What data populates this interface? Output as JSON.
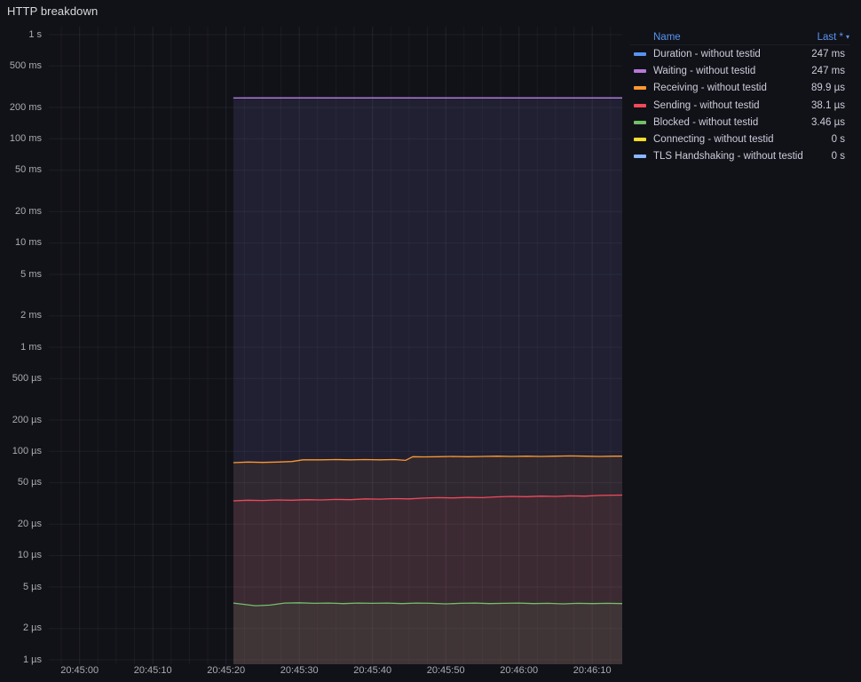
{
  "panel": {
    "title": "HTTP breakdown"
  },
  "legend": {
    "header_name": "Name",
    "header_last": "Last *",
    "sort_caret": "▾",
    "header_color": "#5794F2"
  },
  "colors": {
    "background": "#111217",
    "grid": "rgba(204,204,220,0.07)",
    "axis_text": "#A9ACB3",
    "legend_text": "#CCCCDC",
    "title_text": "#D8D9DA"
  },
  "chart_data": {
    "type": "line",
    "title": "HTTP breakdown",
    "legend_position": "right-top",
    "grid": true,
    "y_axis": {
      "scale": "log",
      "unit": "seconds",
      "top_value": 1.1934,
      "bottom_value": 9.06e-07,
      "ticks": [
        {
          "label": "1 s",
          "value": 1
        },
        {
          "label": "500 ms",
          "value": 0.5
        },
        {
          "label": "200 ms",
          "value": 0.2
        },
        {
          "label": "100 ms",
          "value": 0.1
        },
        {
          "label": "50 ms",
          "value": 0.05
        },
        {
          "label": "20 ms",
          "value": 0.02
        },
        {
          "label": "10 ms",
          "value": 0.01
        },
        {
          "label": "5 ms",
          "value": 0.005
        },
        {
          "label": "2 ms",
          "value": 0.002
        },
        {
          "label": "1 ms",
          "value": 0.001
        },
        {
          "label": "500 µs",
          "value": 0.0005
        },
        {
          "label": "200 µs",
          "value": 0.0002
        },
        {
          "label": "100 µs",
          "value": 0.0001
        },
        {
          "label": "50 µs",
          "value": 5e-05
        },
        {
          "label": "20 µs",
          "value": 2e-05
        },
        {
          "label": "10 µs",
          "value": 1e-05
        },
        {
          "label": "5 µs",
          "value": 5e-06
        },
        {
          "label": "2 µs",
          "value": 2e-06
        },
        {
          "label": "1 µs",
          "value": 1e-06
        }
      ]
    },
    "x_axis": {
      "domain_s": [
        -4.2,
        74.1
      ],
      "grid_step_s": 2.5,
      "ticks": [
        {
          "label": "20:45:00",
          "t": 0
        },
        {
          "label": "20:45:10",
          "t": 10
        },
        {
          "label": "20:45:20",
          "t": 20
        },
        {
          "label": "20:45:30",
          "t": 30
        },
        {
          "label": "20:45:40",
          "t": 40
        },
        {
          "label": "20:45:50",
          "t": 50
        },
        {
          "label": "20:46:00",
          "t": 60
        },
        {
          "label": "20:46:10",
          "t": 70
        }
      ]
    },
    "series": [
      {
        "name": "Duration",
        "label": "Duration - without testid",
        "color": "#5794F2",
        "last": "247 ms",
        "points": [
          [
            21,
            0.2462
          ],
          [
            23.5,
            0.247
          ],
          [
            27,
            0.2468
          ],
          [
            31,
            0.2471
          ],
          [
            35,
            0.2469
          ],
          [
            39,
            0.247
          ],
          [
            43,
            0.2471
          ],
          [
            47,
            0.2469
          ],
          [
            51,
            0.247
          ],
          [
            55,
            0.2471
          ],
          [
            59,
            0.2469
          ],
          [
            63,
            0.247
          ],
          [
            67,
            0.247
          ],
          [
            71,
            0.2469
          ],
          [
            74.1,
            0.247
          ]
        ]
      },
      {
        "name": "Waiting",
        "label": "Waiting - without testid",
        "color": "#B877D9",
        "last": "247 ms",
        "points": [
          [
            21,
            0.2462
          ],
          [
            23.5,
            0.247
          ],
          [
            27,
            0.2468
          ],
          [
            31,
            0.2471
          ],
          [
            35,
            0.2469
          ],
          [
            39,
            0.247
          ],
          [
            43,
            0.2471
          ],
          [
            47,
            0.2469
          ],
          [
            51,
            0.247
          ],
          [
            55,
            0.2471
          ],
          [
            59,
            0.2469
          ],
          [
            63,
            0.247
          ],
          [
            67,
            0.247
          ],
          [
            71,
            0.2469
          ],
          [
            74.1,
            0.247
          ]
        ]
      },
      {
        "name": "Receiving",
        "label": "Receiving - without testid",
        "color": "#FF9830",
        "last": "89.9 µs",
        "points": [
          [
            21,
            7.8e-05
          ],
          [
            23,
            7.9e-05
          ],
          [
            25,
            7.85e-05
          ],
          [
            27,
            7.9e-05
          ],
          [
            29,
            8e-05
          ],
          [
            30.5,
            8.3e-05
          ],
          [
            33,
            8.3e-05
          ],
          [
            35,
            8.35e-05
          ],
          [
            37,
            8.3e-05
          ],
          [
            39,
            8.35e-05
          ],
          [
            41,
            8.3e-05
          ],
          [
            43,
            8.35e-05
          ],
          [
            44.5,
            8.2e-05
          ],
          [
            45.5,
            8.9e-05
          ],
          [
            47,
            8.85e-05
          ],
          [
            49,
            8.9e-05
          ],
          [
            51,
            8.95e-05
          ],
          [
            53,
            8.9e-05
          ],
          [
            55,
            8.95e-05
          ],
          [
            57,
            9e-05
          ],
          [
            59,
            8.95e-05
          ],
          [
            61,
            9e-05
          ],
          [
            63,
            8.95e-05
          ],
          [
            65,
            9e-05
          ],
          [
            67,
            9.05e-05
          ],
          [
            69,
            9e-05
          ],
          [
            71,
            8.95e-05
          ],
          [
            73,
            9e-05
          ],
          [
            74.1,
            8.99e-05
          ]
        ]
      },
      {
        "name": "Sending",
        "label": "Sending - without testid",
        "color": "#F2495C",
        "last": "38.1 µs",
        "points": [
          [
            21,
            3.35e-05
          ],
          [
            23,
            3.4e-05
          ],
          [
            25,
            3.38e-05
          ],
          [
            27,
            3.42e-05
          ],
          [
            29,
            3.4e-05
          ],
          [
            31,
            3.44e-05
          ],
          [
            33,
            3.42e-05
          ],
          [
            35,
            3.46e-05
          ],
          [
            37,
            3.44e-05
          ],
          [
            39,
            3.5e-05
          ],
          [
            41,
            3.48e-05
          ],
          [
            43,
            3.52e-05
          ],
          [
            45,
            3.5e-05
          ],
          [
            47,
            3.56e-05
          ],
          [
            49,
            3.6e-05
          ],
          [
            51,
            3.58e-05
          ],
          [
            53,
            3.62e-05
          ],
          [
            55,
            3.6e-05
          ],
          [
            57,
            3.66e-05
          ],
          [
            59,
            3.7e-05
          ],
          [
            61,
            3.68e-05
          ],
          [
            63,
            3.72e-05
          ],
          [
            65,
            3.7e-05
          ],
          [
            67,
            3.74e-05
          ],
          [
            69,
            3.72e-05
          ],
          [
            71,
            3.78e-05
          ],
          [
            73,
            3.8e-05
          ],
          [
            74.1,
            3.81e-05
          ]
        ]
      },
      {
        "name": "Blocked",
        "label": "Blocked - without testid",
        "color": "#73BF69",
        "last": "3.46 µs",
        "points": [
          [
            21,
            3.5e-06
          ],
          [
            22.5,
            3.4e-06
          ],
          [
            24,
            3.3e-06
          ],
          [
            26,
            3.35e-06
          ],
          [
            28,
            3.5e-06
          ],
          [
            30,
            3.52e-06
          ],
          [
            32,
            3.48e-06
          ],
          [
            34,
            3.5e-06
          ],
          [
            36,
            3.46e-06
          ],
          [
            38,
            3.5e-06
          ],
          [
            40,
            3.48e-06
          ],
          [
            42,
            3.5e-06
          ],
          [
            44,
            3.46e-06
          ],
          [
            46,
            3.5e-06
          ],
          [
            48,
            3.48e-06
          ],
          [
            50,
            3.44e-06
          ],
          [
            52,
            3.48e-06
          ],
          [
            54,
            3.5e-06
          ],
          [
            56,
            3.46e-06
          ],
          [
            58,
            3.48e-06
          ],
          [
            60,
            3.5e-06
          ],
          [
            62,
            3.46e-06
          ],
          [
            64,
            3.48e-06
          ],
          [
            66,
            3.44e-06
          ],
          [
            68,
            3.48e-06
          ],
          [
            70,
            3.46e-06
          ],
          [
            72,
            3.48e-06
          ],
          [
            74.1,
            3.46e-06
          ]
        ]
      },
      {
        "name": "Connecting",
        "label": "Connecting - without testid",
        "color": "#FADE2A",
        "last": "0 s",
        "points": []
      },
      {
        "name": "TLS Handshaking",
        "label": "TLS Handshaking - without testid",
        "color": "#8AB8FF",
        "last": "0 s",
        "points": []
      }
    ]
  }
}
